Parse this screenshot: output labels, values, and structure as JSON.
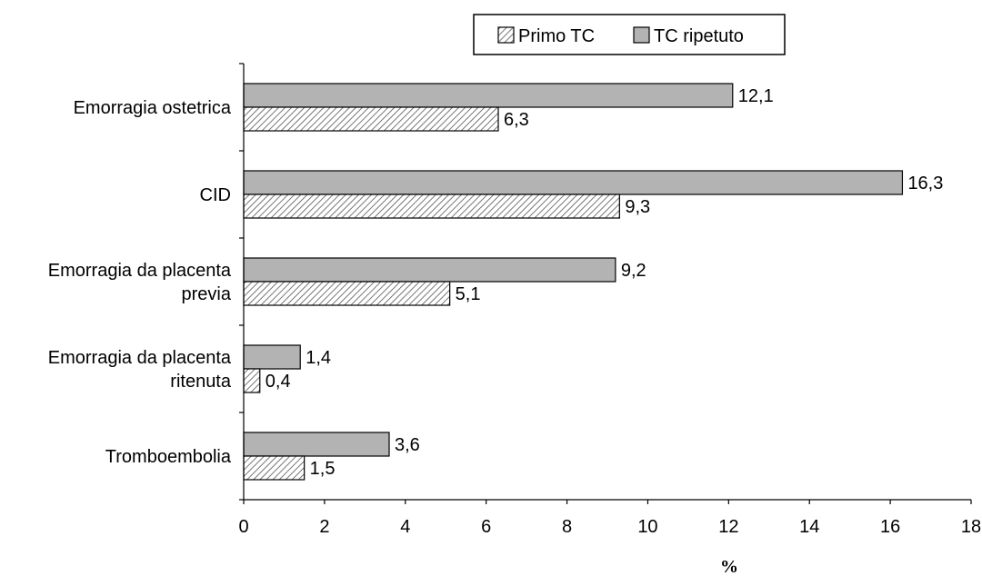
{
  "chart_data": {
    "type": "bar",
    "orientation": "horizontal",
    "categories": [
      [
        "Emorragia ostetrica"
      ],
      [
        "CID"
      ],
      [
        "Emorragia da placenta",
        "previa"
      ],
      [
        "Emorragia da placenta",
        "ritenuta"
      ],
      [
        "Tromboembolia"
      ]
    ],
    "series": [
      {
        "name": "TC ripetuto",
        "values": [
          12.1,
          16.3,
          9.2,
          1.4,
          3.6
        ],
        "labels": [
          "12,1",
          "16,3",
          "9,2",
          "1,4",
          "3,6"
        ],
        "color": "#b3b3b3",
        "pattern": "solid"
      },
      {
        "name": "Primo TC",
        "values": [
          6.3,
          9.3,
          5.1,
          0.4,
          1.5
        ],
        "labels": [
          "6,3",
          "9,3",
          "5,1",
          "0,4",
          "1,5"
        ],
        "color": "#ffffff",
        "pattern": "hatched"
      }
    ],
    "legend": {
      "position": "top-right",
      "order": [
        "Primo TC",
        "TC ripetuto"
      ]
    },
    "xlabel": "%",
    "ylabel": "",
    "xlim": [
      0,
      18
    ],
    "xticks": [
      0,
      2,
      4,
      6,
      8,
      10,
      12,
      14,
      16,
      18
    ],
    "grid": false
  }
}
